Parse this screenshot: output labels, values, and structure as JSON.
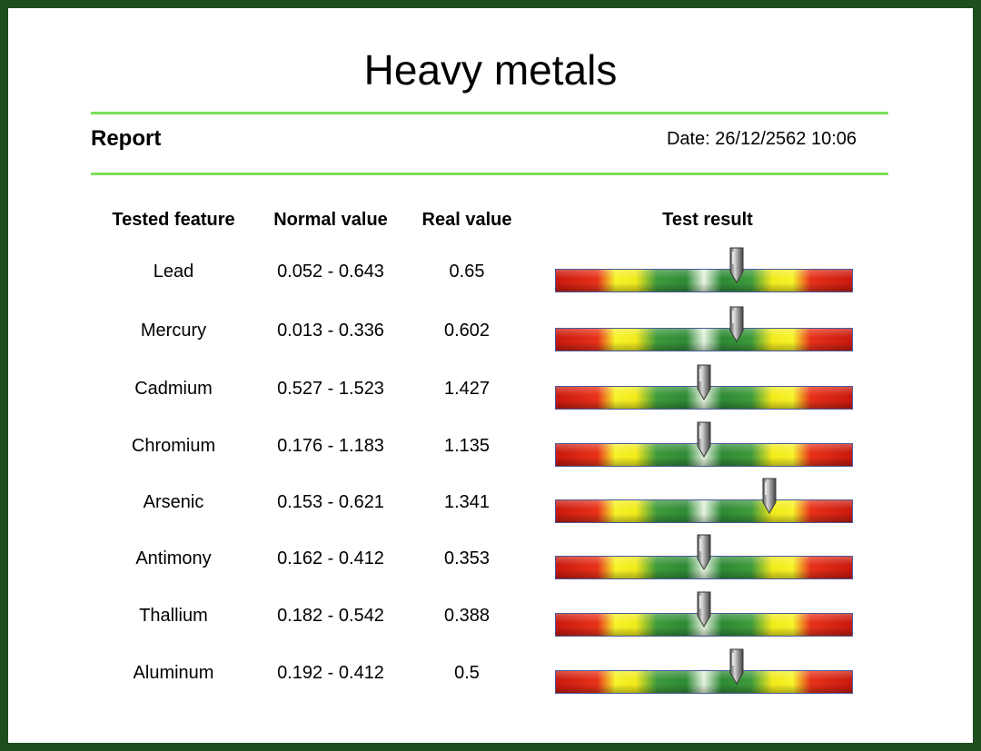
{
  "title": "Heavy metals",
  "report": {
    "label": "Report",
    "date": "Date: 26/12/2562 10:06"
  },
  "table": {
    "headers": {
      "feature": "Tested feature",
      "normal": "Normal value",
      "real": "Real value",
      "result": "Test result"
    },
    "rows": [
      {
        "feature": "Lead",
        "normal": "0.052 - 0.643",
        "real": "0.65",
        "marker_pos": 0.61
      },
      {
        "feature": "Mercury",
        "normal": "0.013 - 0.336",
        "real": "0.602",
        "marker_pos": 0.61
      },
      {
        "feature": "Cadmium",
        "normal": "0.527 - 1.523",
        "real": "1.427",
        "marker_pos": 0.5
      },
      {
        "feature": "Chromium",
        "normal": "0.176 - 1.183",
        "real": "1.135",
        "marker_pos": 0.5
      },
      {
        "feature": "Arsenic",
        "normal": "0.153 - 0.621",
        "real": "1.341",
        "marker_pos": 0.72
      },
      {
        "feature": "Antimony",
        "normal": "0.162 - 0.412",
        "real": "0.353",
        "marker_pos": 0.5
      },
      {
        "feature": "Thallium",
        "normal": "0.182 - 0.542",
        "real": "0.388",
        "marker_pos": 0.5
      },
      {
        "feature": "Aluminum",
        "normal": "0.192 - 0.412",
        "real": "0.5",
        "marker_pos": 0.61
      }
    ]
  },
  "colors": {
    "frame": "#1e4d1e",
    "rule": "#7be05a",
    "bar_red": "#d9261a",
    "bar_yellow": "#f4ee22",
    "bar_green": "#2f8a36",
    "marker": "#8a8a8a"
  },
  "icons": {
    "marker": "gauge-pointer-icon"
  }
}
